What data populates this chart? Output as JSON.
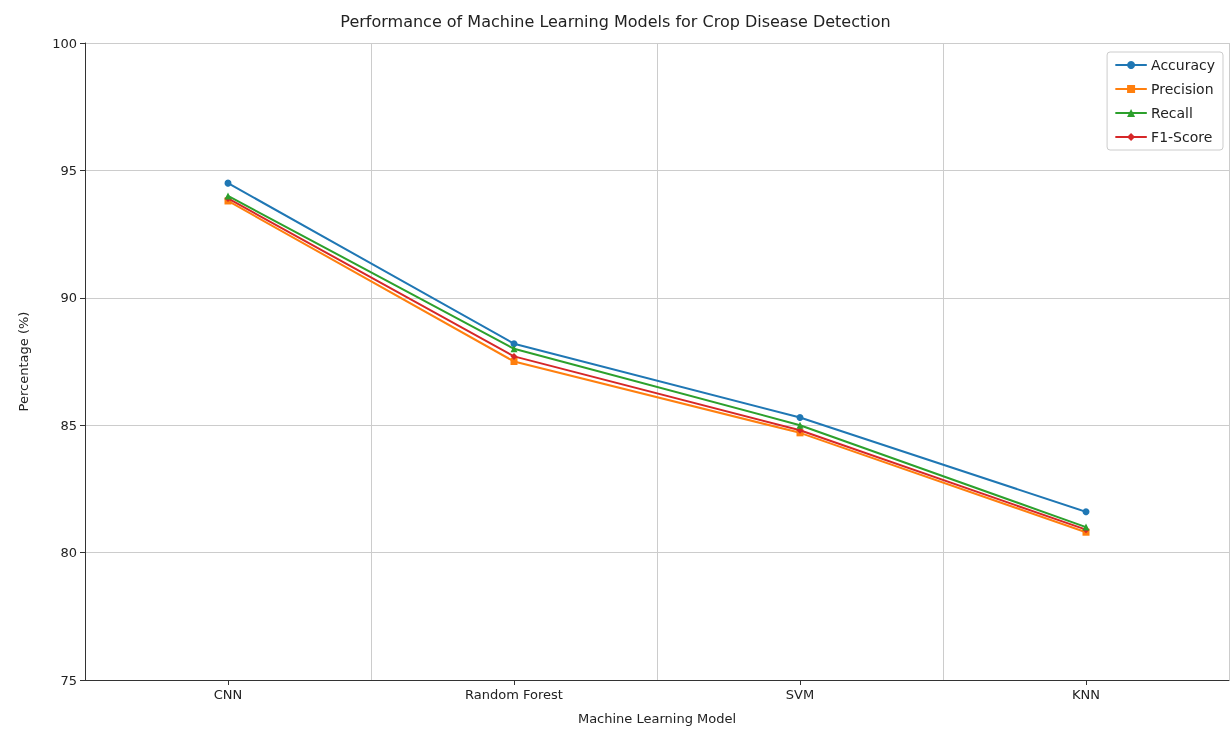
{
  "chart_data": {
    "type": "line",
    "title": "Performance of Machine Learning Models for Crop Disease Detection",
    "xlabel": "Machine Learning Model",
    "ylabel": "Percentage (%)",
    "categories": [
      "CNN",
      "Random Forest",
      "SVM",
      "KNN"
    ],
    "series": [
      {
        "name": "Accuracy",
        "color": "#1f77b4",
        "marker": "circle",
        "values": [
          94.5,
          88.2,
          85.3,
          81.6
        ]
      },
      {
        "name": "Precision",
        "color": "#ff7f0e",
        "marker": "square",
        "values": [
          93.8,
          87.5,
          84.7,
          80.8
        ]
      },
      {
        "name": "Recall",
        "color": "#2ca02c",
        "marker": "triangle",
        "values": [
          94.0,
          88.0,
          85.0,
          81.0
        ]
      },
      {
        "name": "F1-Score",
        "color": "#d62728",
        "marker": "diamond",
        "values": [
          93.9,
          87.7,
          84.8,
          80.9
        ]
      }
    ],
    "ylim": [
      75,
      100
    ],
    "yticks": [
      75,
      80,
      85,
      90,
      95,
      100
    ],
    "grid": true,
    "legend": "top right",
    "line_style": "solid"
  }
}
